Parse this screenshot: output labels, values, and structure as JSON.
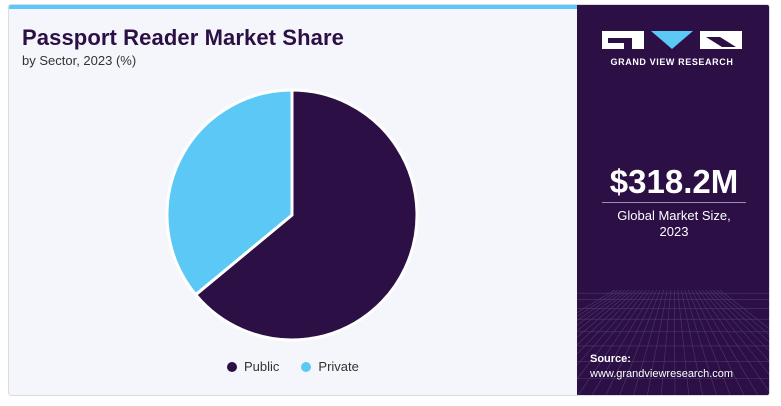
{
  "header": {
    "title": "Passport Reader Market Share",
    "subtitle": "by Sector, 2023 (%)"
  },
  "chart_data": {
    "type": "pie",
    "title": "Passport Reader Market Share",
    "subtitle": "by Sector, 2023 (%)",
    "categories": [
      "Public",
      "Private"
    ],
    "values": [
      64,
      36
    ],
    "colors": [
      "#2b0f45",
      "#5bc8f5"
    ],
    "legend_position": "bottom"
  },
  "sidebar": {
    "logo_text": "GRAND VIEW RESEARCH",
    "stat_value": "$318.2M",
    "stat_label_line1": "Global Market Size,",
    "stat_label_line2": "2023",
    "source_label": "Source:",
    "source_url": "www.grandviewresearch.com",
    "background_color": "#2b0f45",
    "accent_color": "#5bc8f5"
  }
}
